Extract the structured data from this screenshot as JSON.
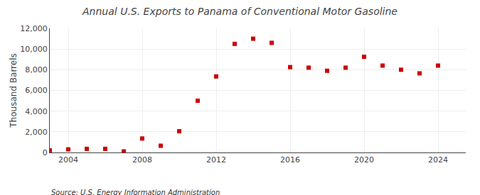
{
  "chart_data": {
    "type": "scatter",
    "title": "Annual U.S. Exports to Panama of Conventional Motor Gasoline",
    "ylabel": "Thousand Barrels",
    "annotations": [
      "Source: U.S. Energy Information Administration"
    ],
    "x": [
      2003,
      2004,
      2005,
      2006,
      2007,
      2008,
      2009,
      2010,
      2011,
      2012,
      2013,
      2014,
      2015,
      2016,
      2017,
      2018,
      2019,
      2020,
      2021,
      2022,
      2023,
      2024
    ],
    "values": [
      200,
      300,
      350,
      350,
      100,
      1350,
      650,
      2050,
      5000,
      7350,
      10500,
      11000,
      10600,
      8250,
      8200,
      7900,
      8200,
      9250,
      8400,
      8000,
      7650,
      8400
    ],
    "color": "#cc0000",
    "marker": "square",
    "xlim": [
      2003.0,
      2025.5
    ],
    "ylim": [
      0,
      12000
    ],
    "xticks": [
      2004,
      2008,
      2012,
      2016,
      2020,
      2024
    ],
    "yticks": [
      0,
      {
        "value": 2000,
        "label": "2,000"
      },
      {
        "value": 4000,
        "label": "4,000"
      },
      {
        "value": 6000,
        "label": "6,000"
      },
      {
        "value": 8000,
        "label": "8,000"
      },
      {
        "value": 10000,
        "label": "10,000"
      },
      {
        "value": 12000,
        "label": "12,000"
      }
    ],
    "grid": true
  }
}
